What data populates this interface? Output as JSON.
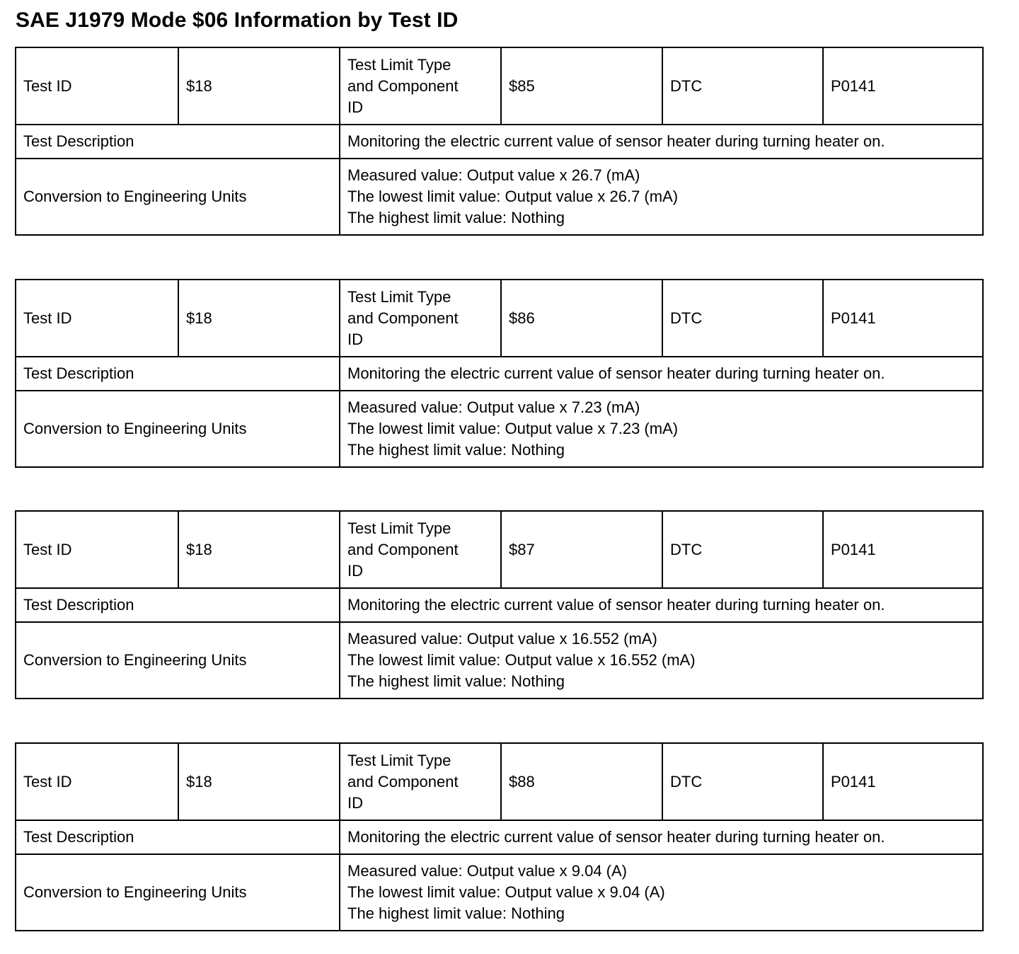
{
  "title": "SAE J1979 Mode $06 Information by Test ID",
  "labels": {
    "test_id": "Test ID",
    "limit_type": "Test Limit Type\n and Component\n ID",
    "dtc": "DTC",
    "test_description": "Test Description",
    "conversion": "Conversion to Engineering Units"
  },
  "tables": [
    {
      "test_id": "$18",
      "limit_type": "$85",
      "dtc": "P0141",
      "description": "Monitoring the electric current value of sensor heater during turning heater on.",
      "conversion": [
        "Measured value: Output value x 26.7 (mA)",
        "The lowest limit value: Output value x 26.7 (mA)",
        "The highest limit value: Nothing"
      ]
    },
    {
      "test_id": "$18",
      "limit_type": "$86",
      "dtc": "P0141",
      "description": "Monitoring the electric current value of sensor heater during turning heater on.",
      "conversion": [
        "Measured value: Output value x 7.23 (mA)",
        "The lowest limit value: Output value x 7.23 (mA)",
        "The highest limit value: Nothing"
      ]
    },
    {
      "test_id": "$18",
      "limit_type": "$87",
      "dtc": "P0141",
      "description": "Monitoring the electric current value of sensor heater during turning heater on.",
      "conversion": [
        "Measured value: Output value x 16.552 (mA)",
        "The lowest limit value: Output value x 16.552 (mA)",
        "The highest limit value: Nothing"
      ]
    },
    {
      "test_id": "$18",
      "limit_type": "$88",
      "dtc": "P0141",
      "description": "Monitoring the electric current value of sensor heater during turning heater on.",
      "conversion": [
        "Measured value: Output value x 9.04 (A)",
        "The lowest limit value: Output value x 9.04 (A)",
        "The highest limit value: Nothing"
      ]
    }
  ]
}
